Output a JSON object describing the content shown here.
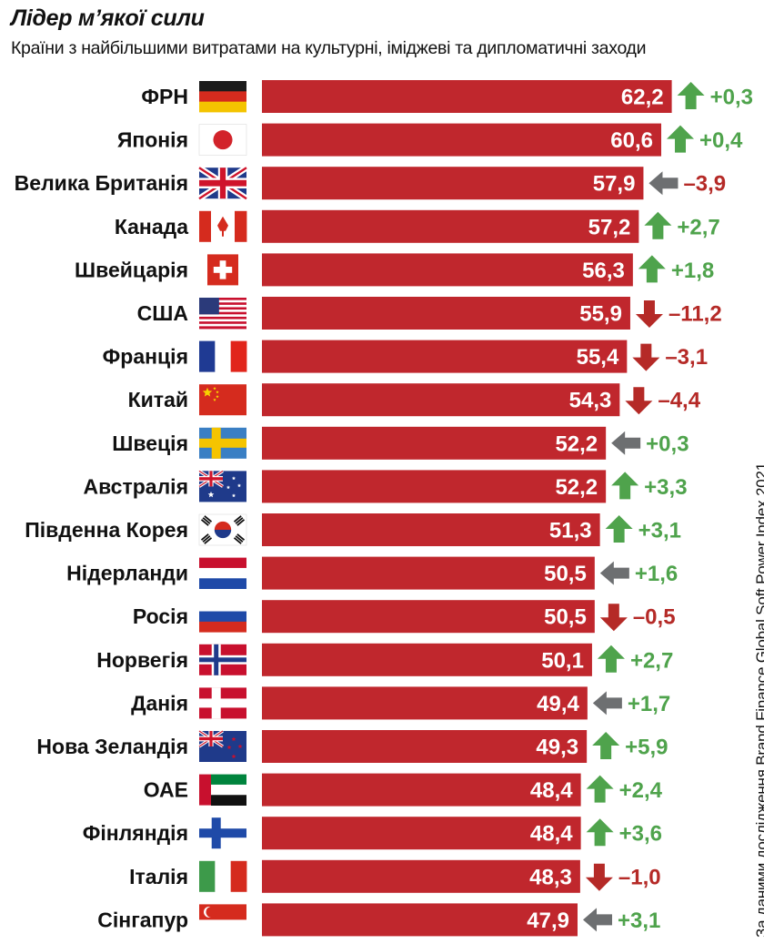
{
  "chart_data": {
    "type": "bar",
    "orientation": "horizontal",
    "title": "Лідер м’якої сили",
    "subtitle": "Країни з найбільшими витратами на культурні, іміджеві та дипломатичні заходи",
    "source": "За даними дослідження Brand Finance Global Soft Power Index 2021",
    "bar_color": "#c0272d",
    "colors": {
      "up": "#4fa34c",
      "down": "#b52a27",
      "same": "#6d6f71"
    },
    "categories": [
      "ФРН",
      "Японія",
      "Велика Британія",
      "Канада",
      "Швейцарія",
      "США",
      "Франція",
      "Китай",
      "Швеція",
      "Австралія",
      "Південна Корея",
      "Нідерланди",
      "Росія",
      "Норвегія",
      "Данія",
      "Нова Зеландія",
      "ОАЕ",
      "Фінляндія",
      "Італія",
      "Сінгапур"
    ],
    "flags": [
      "germany",
      "japan",
      "uk",
      "canada",
      "switzerland",
      "usa",
      "france",
      "china",
      "sweden",
      "australia",
      "south-korea",
      "netherlands",
      "russia",
      "norway",
      "denmark",
      "new-zealand",
      "uae",
      "finland",
      "italy",
      "singapore"
    ],
    "values": [
      62.2,
      60.6,
      57.9,
      57.2,
      56.3,
      55.9,
      55.4,
      54.3,
      52.2,
      52.2,
      51.3,
      50.5,
      50.5,
      50.1,
      49.4,
      49.3,
      48.4,
      48.4,
      48.3,
      47.9
    ],
    "value_labels": [
      "62,2",
      "60,6",
      "57,9",
      "57,2",
      "56,3",
      "55,9",
      "55,4",
      "54,3",
      "52,2",
      "52,2",
      "51,3",
      "50,5",
      "50,5",
      "50,1",
      "49,4",
      "49,3",
      "48,4",
      "48,4",
      "48,3",
      "47,9"
    ],
    "changes": [
      0.3,
      0.4,
      -3.9,
      2.7,
      1.8,
      -11.2,
      -3.1,
      -4.4,
      0.3,
      3.3,
      3.1,
      1.6,
      -0.5,
      2.7,
      1.7,
      5.9,
      2.4,
      3.6,
      -1.0,
      3.1
    ],
    "change_labels": [
      "+0,3",
      "+0,4",
      "–3,9",
      "+2,7",
      "+1,8",
      "–11,2",
      "–3,1",
      "–4,4",
      "+0,3",
      "+3,3",
      "+3,1",
      "+1,6",
      "–0,5",
      "+2,7",
      "+1,7",
      "+5,9",
      "+2,4",
      "+3,6",
      "–1,0",
      "+3,1"
    ],
    "rank_movement": [
      "up",
      "up",
      "same",
      "up",
      "up",
      "down",
      "down",
      "down",
      "same",
      "up",
      "up",
      "same",
      "down",
      "up",
      "same",
      "up",
      "up",
      "up",
      "down",
      "same"
    ]
  }
}
